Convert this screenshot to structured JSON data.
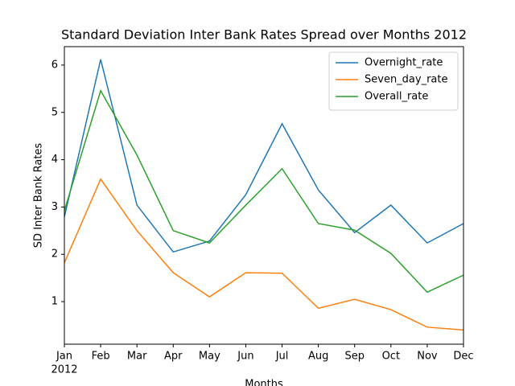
{
  "chart_data": {
    "type": "line",
    "title": "Standard Deviation Inter Bank Rates Spread over Months 2012",
    "x_label": "Months",
    "y_label": "SD Inter Bank Rates",
    "categories": [
      "Jan",
      "Feb",
      "Mar",
      "Apr",
      "May",
      "Jun",
      "Jul",
      "Aug",
      "Sep",
      "Oct",
      "Nov",
      "Dec"
    ],
    "year_label": "2012",
    "series": [
      {
        "name": "Overnight_rate",
        "color": "#1f77b4",
        "values": [
          2.79,
          6.12,
          3.04,
          2.05,
          2.28,
          3.26,
          4.76,
          3.36,
          2.46,
          3.04,
          2.24,
          2.65
        ]
      },
      {
        "name": "Seven_day_rate",
        "color": "#ff7f0e",
        "values": [
          1.82,
          3.59,
          2.5,
          1.61,
          1.1,
          1.61,
          1.6,
          0.86,
          1.05,
          0.83,
          0.46,
          0.4
        ]
      },
      {
        "name": "Overall_rate",
        "color": "#2ca02c",
        "values": [
          2.92,
          5.46,
          4.1,
          2.5,
          2.24,
          3.04,
          3.81,
          2.65,
          2.51,
          2.02,
          1.2,
          1.56
        ]
      }
    ],
    "ylim": [
      0.1,
      6.39
    ],
    "yticks": [
      1,
      2,
      3,
      4,
      5,
      6
    ],
    "legend": "upper right",
    "grid": false
  }
}
